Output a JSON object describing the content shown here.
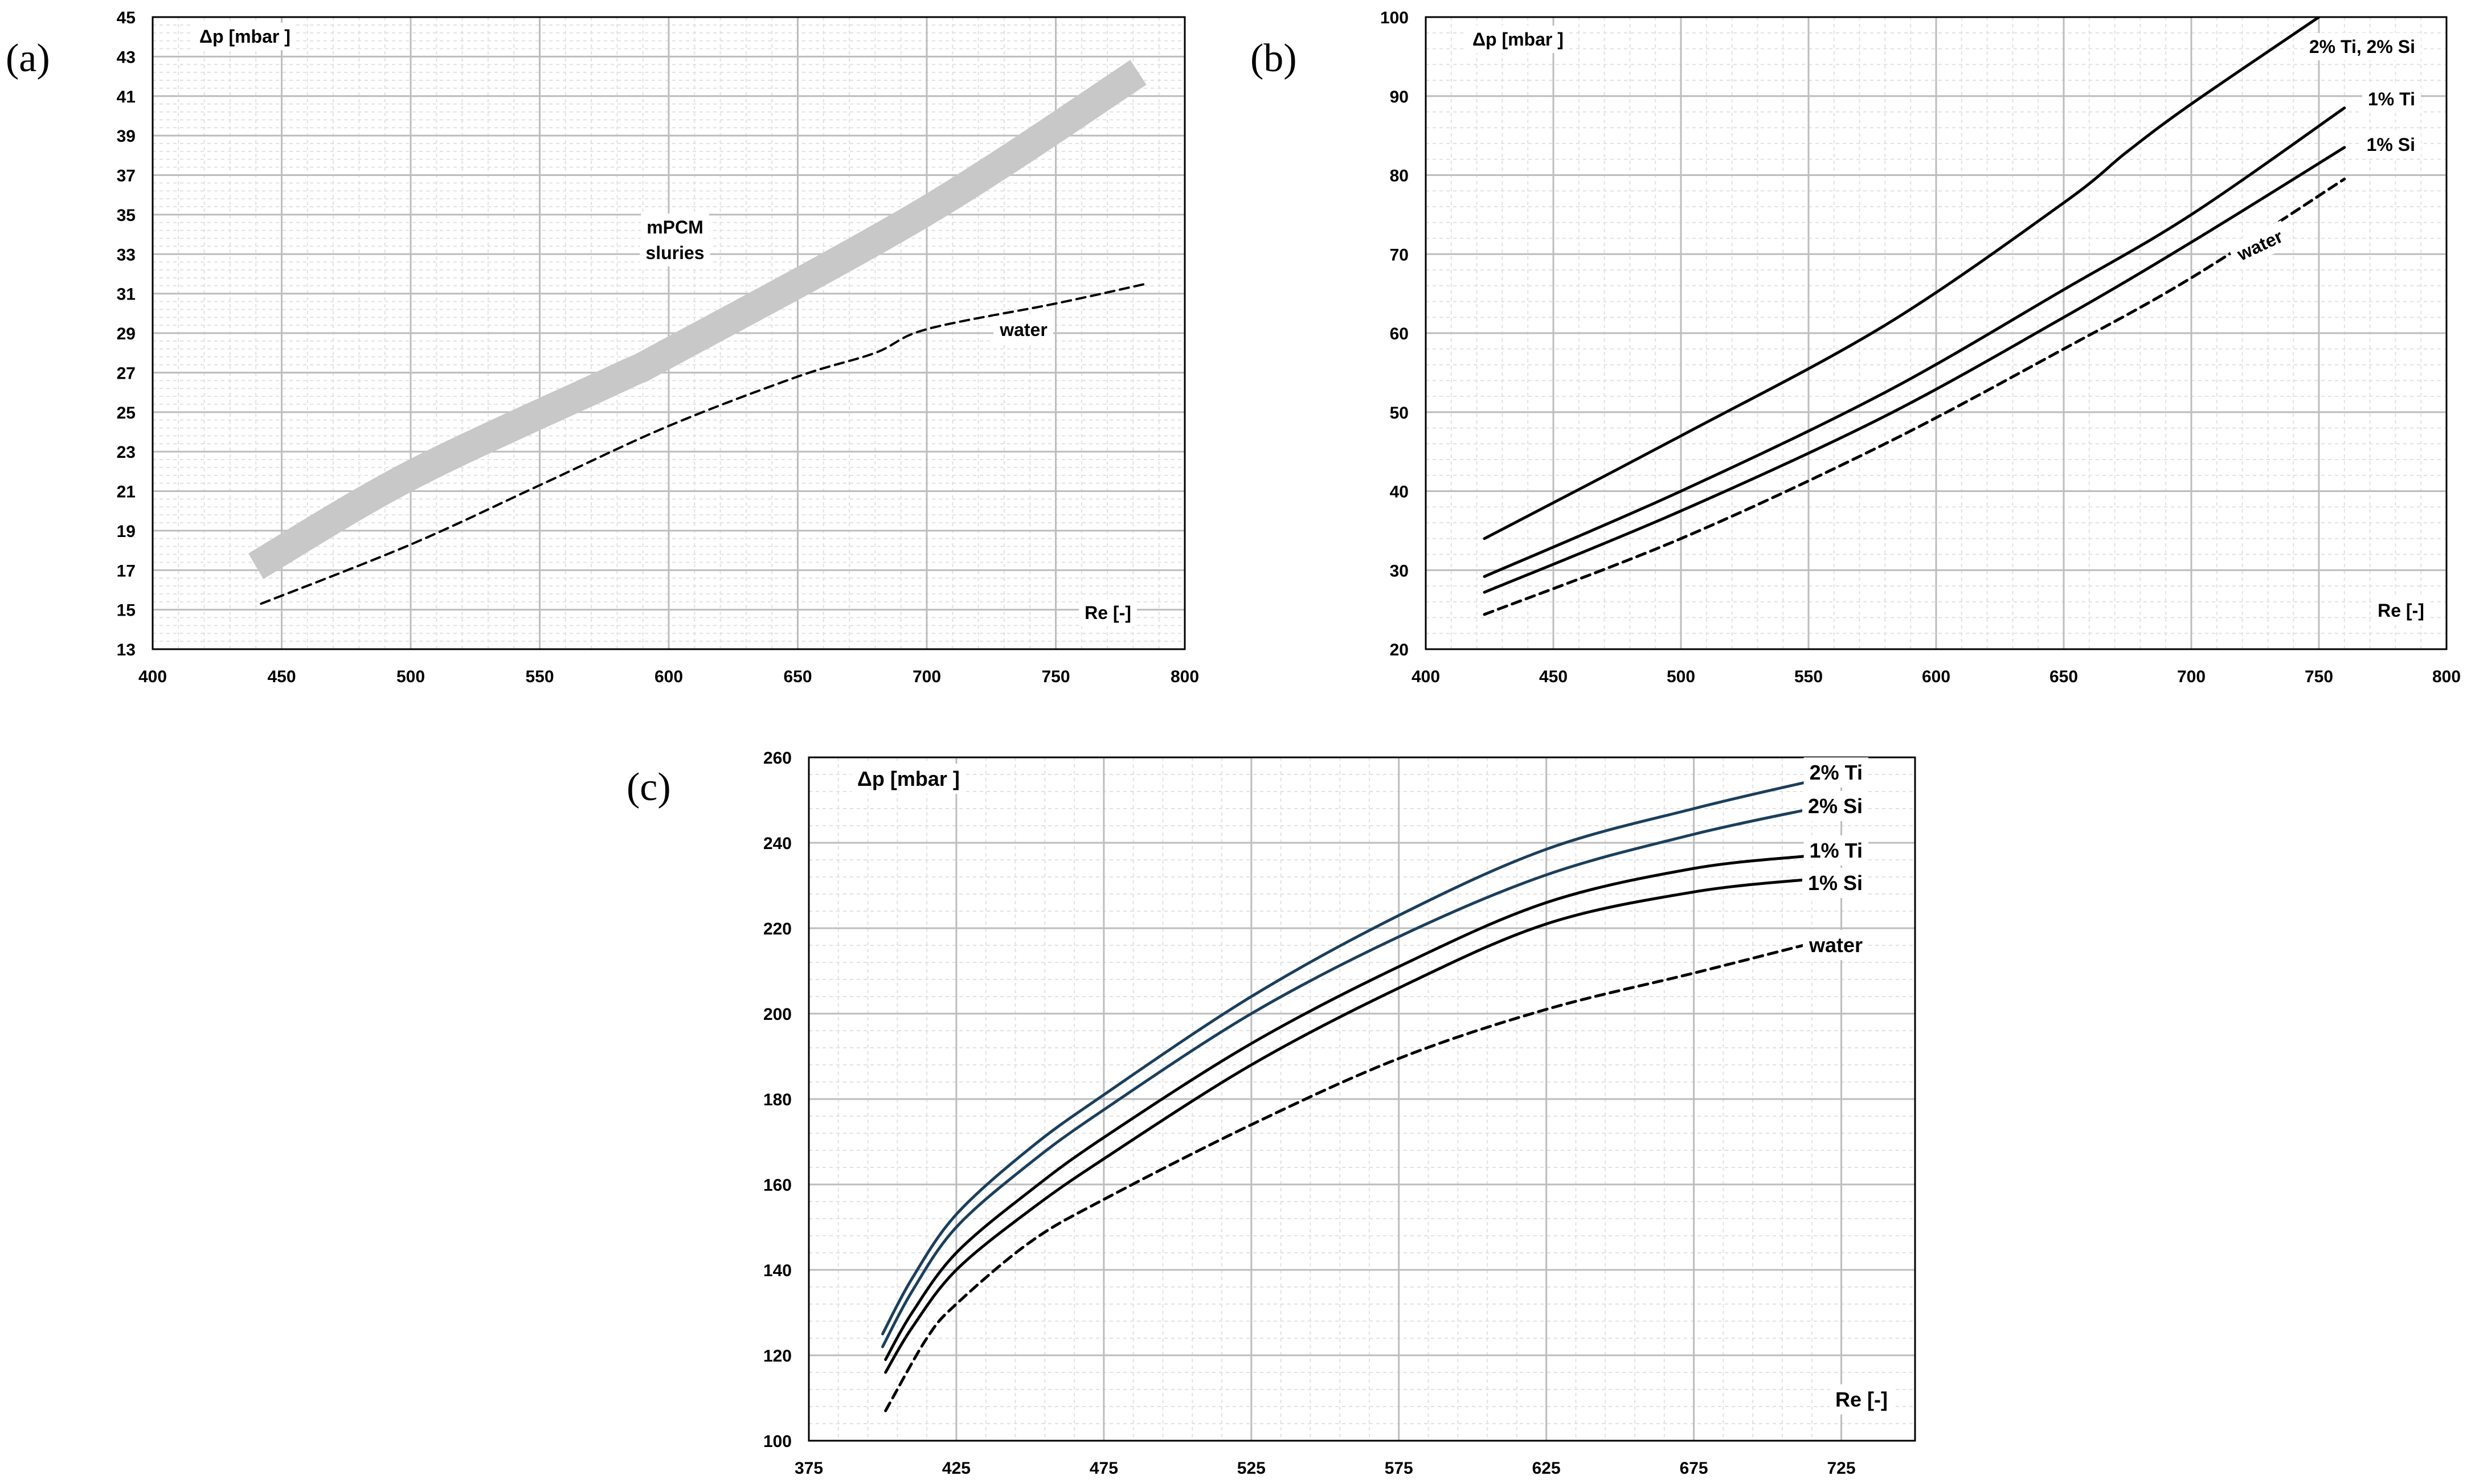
{
  "chart_data": [
    {
      "id": "a",
      "type": "line",
      "panel_label": "(a)",
      "ylabel": "Δp [mbar ]",
      "xlabel": "Re [-]",
      "xlim": [
        400,
        800
      ],
      "ylim": [
        13,
        45
      ],
      "xticks": [
        400,
        450,
        500,
        550,
        600,
        650,
        700,
        750,
        800
      ],
      "yticks": [
        13,
        15,
        17,
        19,
        21,
        23,
        25,
        27,
        29,
        31,
        33,
        35,
        37,
        39,
        41,
        43,
        45
      ],
      "series": [
        {
          "name": "mPCM sluries",
          "style": "band",
          "color": "#c8c8c8",
          "x": [
            440,
            500,
            580,
            600,
            700,
            782
          ],
          "y": [
            17.2,
            21.8,
            26.7,
            28.0,
            35.2,
            42.2
          ]
        },
        {
          "name": "water",
          "style": "dashed",
          "color": "#000000",
          "x": [
            442,
            500,
            550,
            600,
            650,
            680,
            700,
            750,
            785
          ],
          "y": [
            15.3,
            18.3,
            21.3,
            24.3,
            26.8,
            28.0,
            29.2,
            30.5,
            31.5
          ]
        }
      ],
      "annotations": [
        {
          "lines": [
            "mPCM",
            "sluries"
          ]
        },
        {
          "lines": [
            "water"
          ]
        }
      ]
    },
    {
      "id": "b",
      "type": "line",
      "panel_label": "(b)",
      "ylabel": "Δp [mbar ]",
      "xlabel": "Re [-]",
      "xlim": [
        400,
        800
      ],
      "ylim": [
        20,
        100
      ],
      "xticks": [
        400,
        450,
        500,
        550,
        600,
        650,
        700,
        750,
        800
      ],
      "yticks": [
        20,
        30,
        40,
        50,
        60,
        70,
        80,
        90,
        100
      ],
      "series": [
        {
          "name": "2% Ti, 2% Si",
          "style": "solid",
          "color": "#000000",
          "x": [
            423,
            500,
            580,
            650,
            675,
            700,
            750
          ],
          "y": [
            34.0,
            47.0,
            61.0,
            76.5,
            83.0,
            89.0,
            100.0
          ]
        },
        {
          "name": "1% Ti",
          "style": "solid",
          "color": "#000000",
          "x": [
            423,
            500,
            580,
            650,
            700,
            760
          ],
          "y": [
            29.2,
            40.0,
            52.5,
            65.5,
            75.0,
            88.5
          ]
        },
        {
          "name": "1% Si",
          "style": "solid",
          "color": "#000000",
          "x": [
            423,
            500,
            580,
            650,
            700,
            760
          ],
          "y": [
            27.2,
            37.5,
            49.5,
            62.0,
            71.5,
            83.5
          ]
        },
        {
          "name": "water",
          "style": "dashed",
          "color": "#000000",
          "x": [
            423,
            500,
            580,
            650,
            700,
            760
          ],
          "y": [
            24.4,
            34.0,
            46.0,
            58.0,
            67.0,
            79.5
          ]
        }
      ],
      "annotations": [
        {
          "lines": [
            "2% Ti, 2% Si"
          ]
        },
        {
          "lines": [
            "1% Ti"
          ]
        },
        {
          "lines": [
            "1% Si"
          ]
        },
        {
          "lines": [
            "water"
          ]
        }
      ]
    },
    {
      "id": "c",
      "type": "line",
      "panel_label": "(c)",
      "ylabel": "Δp [mbar ]",
      "xlabel": "Re [-]",
      "xlim": [
        375,
        750
      ],
      "ylim": [
        100,
        260
      ],
      "xticks": [
        375,
        425,
        475,
        525,
        575,
        625,
        675,
        725
      ],
      "yticks": [
        100,
        120,
        140,
        160,
        180,
        200,
        220,
        240,
        260
      ],
      "series": [
        {
          "name": "2% Ti",
          "style": "solid",
          "color": "#1b3f5c",
          "x": [
            400,
            410,
            425,
            450,
            475,
            525,
            575,
            625,
            675,
            715
          ],
          "y": [
            125.0,
            138.0,
            153.0,
            168.5,
            181.0,
            204.0,
            223.0,
            238.5,
            248.0,
            254.5
          ]
        },
        {
          "name": "2% Si",
          "style": "solid",
          "color": "#1b3f5c",
          "x": [
            400,
            410,
            425,
            450,
            475,
            525,
            575,
            625,
            675,
            715
          ],
          "y": [
            122.0,
            135.0,
            150.0,
            165.0,
            177.5,
            200.0,
            218.0,
            232.5,
            242.0,
            248.0
          ]
        },
        {
          "name": "1% Ti",
          "style": "solid",
          "color": "#000000",
          "x": [
            401,
            410,
            425,
            450,
            475,
            525,
            575,
            625,
            675,
            715
          ],
          "y": [
            119.0,
            130.0,
            144.0,
            158.5,
            171.0,
            193.0,
            211.0,
            226.0,
            234.0,
            237.0
          ]
        },
        {
          "name": "1% Si",
          "style": "solid",
          "color": "#000000",
          "x": [
            401,
            410,
            425,
            450,
            475,
            525,
            575,
            625,
            675,
            715
          ],
          "y": [
            116.0,
            126.5,
            140.0,
            154.0,
            166.0,
            188.0,
            206.0,
            221.0,
            228.5,
            231.5
          ]
        },
        {
          "name": "water",
          "style": "dashed",
          "color": "#000000",
          "x": [
            401,
            415,
            425,
            450,
            475,
            525,
            575,
            625,
            675,
            715
          ],
          "y": [
            107.0,
            124.0,
            132.0,
            146.5,
            156.5,
            174.0,
            189.5,
            201.0,
            209.5,
            216.5
          ]
        }
      ],
      "annotations": [
        {
          "lines": [
            "2% Ti"
          ]
        },
        {
          "lines": [
            "2% Si"
          ]
        },
        {
          "lines": [
            "1% Ti"
          ]
        },
        {
          "lines": [
            "1% Si"
          ]
        },
        {
          "lines": [
            "water"
          ]
        }
      ]
    }
  ]
}
